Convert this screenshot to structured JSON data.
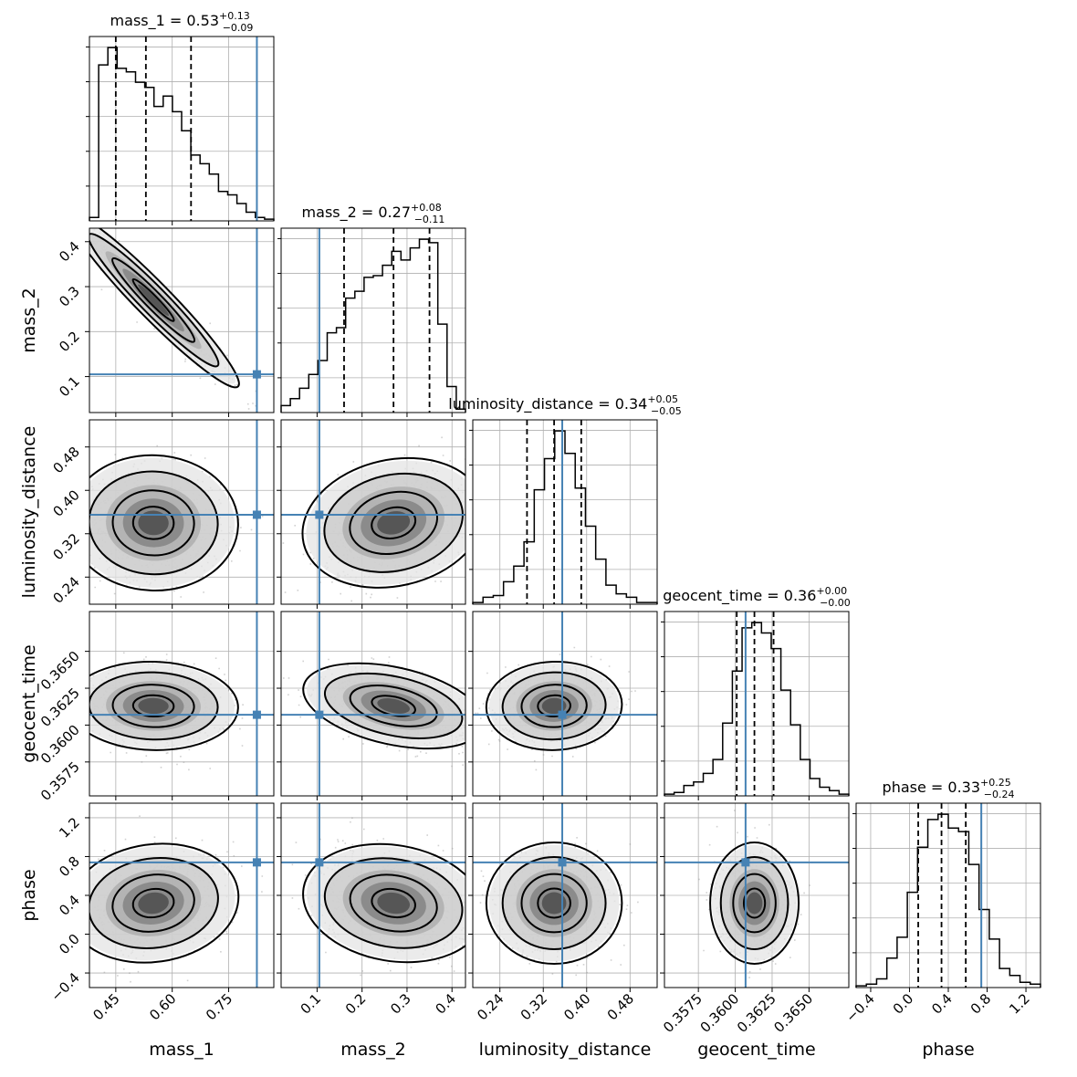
{
  "chart_data": {
    "type": "corner",
    "truth_color": "#4682b4",
    "parameters": [
      {
        "name": "mass_1",
        "xlabel": "mass_1",
        "ylabel": "",
        "range": [
          0.38,
          0.87
        ],
        "ticks": [
          0.45,
          0.6,
          0.75
        ],
        "tick_labels": [
          "0.45",
          "0.60",
          "0.75"
        ],
        "truth": 0.825,
        "title": {
          "main": "mass_1 = 0.53",
          "sup": "+0.13",
          "sub": "−0.09"
        },
        "quantiles": [
          0.45,
          0.53,
          0.65
        ],
        "hist": [
          0.02,
          0.9,
          1.0,
          0.88,
          0.86,
          0.8,
          0.77,
          0.66,
          0.72,
          0.63,
          0.52,
          0.38,
          0.33,
          0.27,
          0.17,
          0.15,
          0.1,
          0.05,
          0.02,
          0.01
        ],
        "mean": 0.55,
        "sd": 0.09
      },
      {
        "name": "mass_2",
        "xlabel": "mass_2",
        "ylabel": "mass_2",
        "range": [
          0.02,
          0.43
        ],
        "ticks": [
          0.1,
          0.2,
          0.3,
          0.4
        ],
        "tick_labels": [
          "0.1",
          "0.2",
          "0.3",
          "0.4"
        ],
        "ytick_labels": [
          "0.1",
          "0.2",
          "0.3",
          "0.4"
        ],
        "truth": 0.105,
        "title": {
          "main": "mass_2 = 0.27",
          "sup": "+0.08",
          "sub": "−0.11"
        },
        "quantiles": [
          0.16,
          0.27,
          0.35
        ],
        "hist": [
          0.04,
          0.08,
          0.14,
          0.22,
          0.3,
          0.46,
          0.49,
          0.66,
          0.7,
          0.78,
          0.79,
          0.85,
          0.93,
          0.88,
          0.95,
          1.0,
          0.98,
          0.51,
          0.15,
          0.02
        ],
        "mean": 0.27,
        "sd": 0.08
      },
      {
        "name": "luminosity_distance",
        "xlabel": "luminosity_distance",
        "ylabel": "luminosity_distance",
        "range": [
          0.19,
          0.53
        ],
        "ticks": [
          0.24,
          0.32,
          0.4,
          0.48
        ],
        "tick_labels": [
          "0.24",
          "0.32",
          "0.40",
          "0.48"
        ],
        "ytick_labels": [
          "0.24",
          "0.32",
          "0.40",
          "0.48"
        ],
        "truth": 0.355,
        "title": {
          "main": "luminosity_distance = 0.34",
          "sup": "+0.05",
          "sub": "−0.05"
        },
        "quantiles": [
          0.29,
          0.34,
          0.39
        ],
        "hist": [
          0.01,
          0.04,
          0.05,
          0.13,
          0.22,
          0.36,
          0.66,
          0.84,
          1.0,
          0.87,
          0.67,
          0.45,
          0.26,
          0.11,
          0.06,
          0.04,
          0.01,
          0.01
        ],
        "mean": 0.34,
        "sd": 0.05
      },
      {
        "name": "geocent_time",
        "xlabel": "geocent_time",
        "ylabel": "geocent_time",
        "range": [
          0.3552,
          0.3677
        ],
        "ticks": [
          0.3575,
          0.36,
          0.3625,
          0.365
        ],
        "tick_labels": [
          "0.3575",
          "0.3600",
          "0.3625",
          "0.3650"
        ],
        "ytick_labels": [
          "0.3575",
          "0.3600",
          "0.3625",
          "0.3650"
        ],
        "truth": 0.3607,
        "title": {
          "main": "geocent_time = 0.36",
          "sup": "+0.00",
          "sub": "−0.00"
        },
        "quantiles": [
          0.3601,
          0.3613,
          0.3626
        ],
        "hist": [
          0.01,
          0.02,
          0.06,
          0.08,
          0.13,
          0.21,
          0.42,
          0.72,
          0.97,
          1.0,
          0.94,
          0.85,
          0.61,
          0.41,
          0.21,
          0.1,
          0.05,
          0.03,
          0.01
        ],
        "mean": 0.3613,
        "sd": 0.0012
      },
      {
        "name": "phase",
        "xlabel": "phase",
        "ylabel": "phase",
        "range": [
          -0.55,
          1.35
        ],
        "ticks": [
          -0.4,
          0.0,
          0.4,
          0.8,
          1.2
        ],
        "tick_labels": [
          "−0.4",
          "0.0",
          "0.4",
          "0.8",
          "1.2"
        ],
        "ytick_labels": [
          "−0.4",
          "0.0",
          "0.4",
          "0.8",
          "1.2"
        ],
        "truth": 0.74,
        "title": {
          "main": "phase = 0.33",
          "sup": "+0.25",
          "sub": "−0.24"
        },
        "quantiles": [
          0.09,
          0.33,
          0.58
        ],
        "hist": [
          0.01,
          0.02,
          0.05,
          0.17,
          0.29,
          0.55,
          0.81,
          0.97,
          1.0,
          0.92,
          0.9,
          0.71,
          0.45,
          0.28,
          0.11,
          0.07,
          0.03,
          0.02
        ],
        "mean": 0.32,
        "sd": 0.25
      }
    ],
    "pair_correlations": {
      "1-0": -0.96,
      "2-0": -0.05,
      "2-1": 0.3,
      "3-0": -0.05,
      "3-1": -0.45,
      "3-2": 0.05,
      "4-0": 0.2,
      "4-1": -0.25,
      "4-2": 0.0,
      "4-3": 0.0
    }
  }
}
